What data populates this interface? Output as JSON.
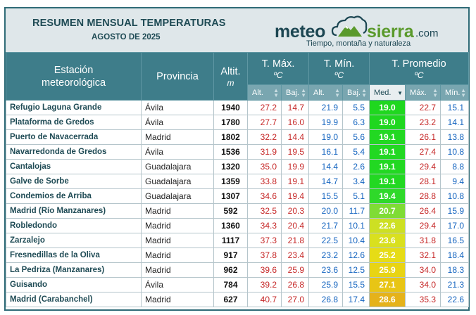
{
  "header": {
    "title": "RESUMEN MENSUAL TEMPERATURAS",
    "subtitle": "AGOSTO DE 2025",
    "logo": {
      "meteo": "meteo",
      "sierra": "sierra",
      "com": ".com",
      "tagline": "Tiempo, montaña y naturaleza"
    }
  },
  "columns": {
    "station": "Estación meteorológica",
    "province": "Provincia",
    "altitude": "Altit.",
    "altitude_unit": "m",
    "tmax": "T. Máx.",
    "tmin": "T. Mín.",
    "tavg": "T. Promedio",
    "unit_c": "ºC",
    "sub": {
      "alt": "Alt.",
      "baj": "Baj.",
      "med": "Med.",
      "max": "Máx.",
      "min": "Mín."
    }
  },
  "colors": {
    "header_bg": "#3e7d8a",
    "subheader_bg": "#79a6b0",
    "max_text": "#c62828",
    "min_text": "#1565c0"
  },
  "rows": [
    {
      "station": "Refugio Laguna Grande",
      "province": "Ávila",
      "altitude": "1940",
      "max_alt": "27.2",
      "max_baj": "14.7",
      "min_alt": "21.9",
      "min_baj": "5.5",
      "avg_med": "19.0",
      "avg_max": "22.7",
      "avg_min": "15.1",
      "med_color": "#1fd71f"
    },
    {
      "station": "Plataforma de Gredos",
      "province": "Ávila",
      "altitude": "1780",
      "max_alt": "27.7",
      "max_baj": "16.0",
      "min_alt": "19.9",
      "min_baj": "6.3",
      "avg_med": "19.0",
      "avg_max": "23.2",
      "avg_min": "14.1",
      "med_color": "#1fd71f"
    },
    {
      "station": "Puerto de Navacerrada",
      "province": "Madrid",
      "altitude": "1802",
      "max_alt": "32.2",
      "max_baj": "14.4",
      "min_alt": "19.0",
      "min_baj": "5.6",
      "avg_med": "19.1",
      "avg_max": "26.1",
      "avg_min": "13.8",
      "med_color": "#22d822"
    },
    {
      "station": "Navarredonda de Gredos",
      "province": "Ávila",
      "altitude": "1536",
      "max_alt": "31.9",
      "max_baj": "19.5",
      "min_alt": "16.1",
      "min_baj": "5.4",
      "avg_med": "19.1",
      "avg_max": "27.4",
      "avg_min": "10.8",
      "med_color": "#22d822"
    },
    {
      "station": "Cantalojas",
      "province": "Guadalajara",
      "altitude": "1320",
      "max_alt": "35.0",
      "max_baj": "19.9",
      "min_alt": "14.4",
      "min_baj": "2.6",
      "avg_med": "19.1",
      "avg_max": "29.4",
      "avg_min": "8.8",
      "med_color": "#22d822"
    },
    {
      "station": "Galve de Sorbe",
      "province": "Guadalajara",
      "altitude": "1359",
      "max_alt": "33.8",
      "max_baj": "19.1",
      "min_alt": "14.7",
      "min_baj": "3.4",
      "avg_med": "19.1",
      "avg_max": "28.1",
      "avg_min": "9.4",
      "med_color": "#22d822"
    },
    {
      "station": "Condemios de Arriba",
      "province": "Guadalajara",
      "altitude": "1307",
      "max_alt": "34.6",
      "max_baj": "19.4",
      "min_alt": "15.5",
      "min_baj": "5.1",
      "avg_med": "19.4",
      "avg_max": "28.8",
      "avg_min": "10.8",
      "med_color": "#2fd92a"
    },
    {
      "station": "Madrid (Río Manzanares)",
      "province": "Madrid",
      "altitude": "592",
      "max_alt": "32.5",
      "max_baj": "20.3",
      "min_alt": "20.0",
      "min_baj": "11.7",
      "avg_med": "20.7",
      "avg_max": "26.4",
      "avg_min": "15.9",
      "med_color": "#7fdc35"
    },
    {
      "station": "Robledondo",
      "province": "Madrid",
      "altitude": "1360",
      "max_alt": "34.3",
      "max_baj": "20.4",
      "min_alt": "21.7",
      "min_baj": "10.1",
      "avg_med": "22.6",
      "avg_max": "29.4",
      "avg_min": "17.0",
      "med_color": "#cde023"
    },
    {
      "station": "Zarzalejo",
      "province": "Madrid",
      "altitude": "1117",
      "max_alt": "37.3",
      "max_baj": "21.8",
      "min_alt": "22.5",
      "min_baj": "10.4",
      "avg_med": "23.6",
      "avg_max": "31.8",
      "avg_min": "16.5",
      "med_color": "#d9e01e"
    },
    {
      "station": "Fresnedillas de la Oliva",
      "province": "Madrid",
      "altitude": "917",
      "max_alt": "37.8",
      "max_baj": "23.4",
      "min_alt": "23.2",
      "min_baj": "12.6",
      "avg_med": "25.2",
      "avg_max": "32.1",
      "avg_min": "18.4",
      "med_color": "#e6dc16"
    },
    {
      "station": "La Pedriza (Manzanares)",
      "province": "Madrid",
      "altitude": "962",
      "max_alt": "39.6",
      "max_baj": "25.9",
      "min_alt": "23.6",
      "min_baj": "12.5",
      "avg_med": "25.9",
      "avg_max": "34.0",
      "avg_min": "18.3",
      "med_color": "#e8d414"
    },
    {
      "station": "Guisando",
      "province": "Ávila",
      "altitude": "784",
      "max_alt": "39.2",
      "max_baj": "26.8",
      "min_alt": "25.9",
      "min_baj": "15.5",
      "avg_med": "27.1",
      "avg_max": "34.0",
      "avg_min": "21.3",
      "med_color": "#e8c515"
    },
    {
      "station": "Madrid (Carabanchel)",
      "province": "Madrid",
      "altitude": "627",
      "max_alt": "40.7",
      "max_baj": "27.0",
      "min_alt": "26.8",
      "min_baj": "17.4",
      "avg_med": "28.6",
      "avg_max": "35.3",
      "avg_min": "22.6",
      "med_color": "#e5b21a"
    }
  ]
}
